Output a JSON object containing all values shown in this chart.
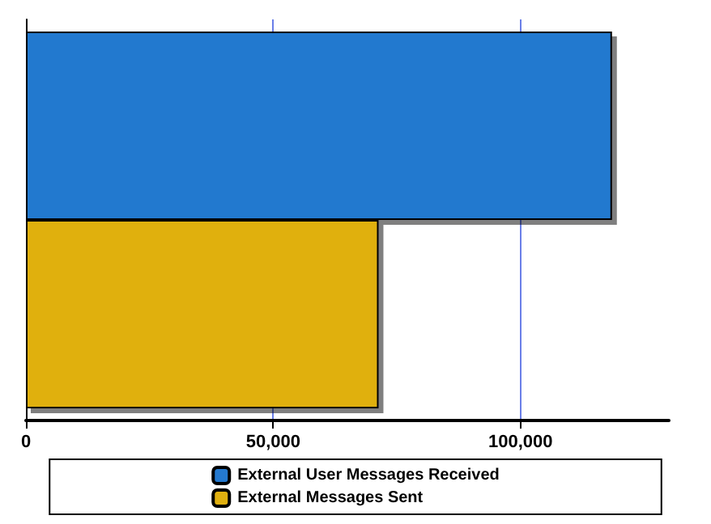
{
  "chart_data": {
    "type": "bar",
    "orientation": "horizontal",
    "categories": [
      null
    ],
    "series": [
      {
        "name": "External User Messages Received",
        "color": "#2479cf",
        "values": [
          118500
        ]
      },
      {
        "name": "External Messages Sent",
        "color": "#e0b010",
        "values": [
          71300
        ]
      }
    ],
    "xlim": [
      0,
      130000
    ],
    "xticks": [
      0,
      {
        "value": 50000,
        "label": "50,000"
      },
      {
        "value": 100000,
        "label": "100,000"
      }
    ],
    "grid": "x",
    "legend": "bottom"
  }
}
